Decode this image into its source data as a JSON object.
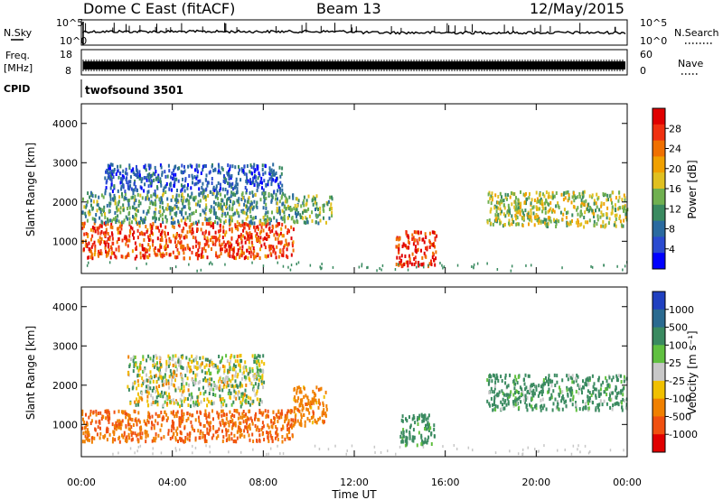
{
  "header": {
    "station": "Dome C East (fitACF)",
    "beam": "Beam 13",
    "date": "12/May/2015"
  },
  "strips": {
    "nsky_label": "N.Sky",
    "nsearch_label": "N.Search",
    "freq_label_line1": "Freq.",
    "freq_label_line2": "[MHz]",
    "nave_label": "Nave",
    "cpid_label": "CPID",
    "noise_ticks_left": [
      "10^5",
      "10^0"
    ],
    "noise_ticks_right": [
      "10^5",
      "10^0"
    ],
    "freq_ticks": [
      "18",
      "8"
    ],
    "nave_ticks": [
      "60",
      "0"
    ],
    "cpid_value": "twofsound 3501"
  },
  "axes": {
    "y_label": "Slant Range [km]",
    "y_ticks": [
      "4000",
      "3000",
      "2000",
      "1000"
    ],
    "x_ticks": [
      "00:00",
      "04:00",
      "08:00",
      "12:00",
      "16:00",
      "20:00",
      "00:00"
    ],
    "x_label": "Time UT"
  },
  "power_scale": {
    "label": "Power [dB]",
    "ticks": [
      "28",
      "24",
      "20",
      "16",
      "12",
      "8",
      "4"
    ],
    "colors": [
      "#e00000",
      "#f03010",
      "#f07000",
      "#f0a000",
      "#e0c020",
      "#70b050",
      "#3a8a60",
      "#2a6aa0",
      "#2a4ad0",
      "#0000ff"
    ]
  },
  "velocity_scale": {
    "label": "Velocity [m s⁻¹]",
    "ticks": [
      "1000",
      "500",
      "100",
      "25",
      "-25",
      "-100",
      "-500",
      "-1000"
    ],
    "colors": [
      "#2040c0",
      "#2a6a90",
      "#3a8a60",
      "#60c040",
      "#c8c8c8",
      "#f0c000",
      "#f08000",
      "#f05010",
      "#e00000"
    ]
  },
  "chart_data": {
    "type": "heatmap",
    "x_range_hours": [
      0,
      24
    ],
    "y_range_km": [
      180,
      4500
    ],
    "panels": [
      {
        "quantity": "power_dB",
        "scatter_regions": [
          {
            "t": [
              0.0,
              9.3
            ],
            "r": [
              600,
              1500
            ],
            "value": 26
          },
          {
            "t": [
              0.0,
              9.3
            ],
            "r": [
              1500,
              2300
            ],
            "value": 12
          },
          {
            "t": [
              1.0,
              8.8
            ],
            "r": [
              2300,
              3000
            ],
            "value": 6
          },
          {
            "t": [
              9.3,
              11.0
            ],
            "r": [
              1500,
              2200
            ],
            "value": 14
          },
          {
            "t": [
              13.8,
              15.6
            ],
            "r": [
              400,
              1300
            ],
            "value": 27
          },
          {
            "t": [
              17.8,
              24.0
            ],
            "r": [
              1400,
              2300
            ],
            "value": 16
          }
        ]
      },
      {
        "quantity": "velocity_m_s",
        "scatter_regions": [
          {
            "t": [
              0.0,
              9.3
            ],
            "r": [
              600,
              1400
            ],
            "value": -300
          },
          {
            "t": [
              2.0,
              8.0
            ],
            "r": [
              1500,
              2800
            ],
            "value": 0
          },
          {
            "t": [
              9.3,
              10.8
            ],
            "r": [
              1000,
              2000
            ],
            "value": -200
          },
          {
            "t": [
              14.0,
              15.5
            ],
            "r": [
              500,
              1300
            ],
            "value": 150
          },
          {
            "t": [
              17.8,
              24.0
            ],
            "r": [
              1400,
              2300
            ],
            "value": 120
          }
        ]
      }
    ]
  }
}
